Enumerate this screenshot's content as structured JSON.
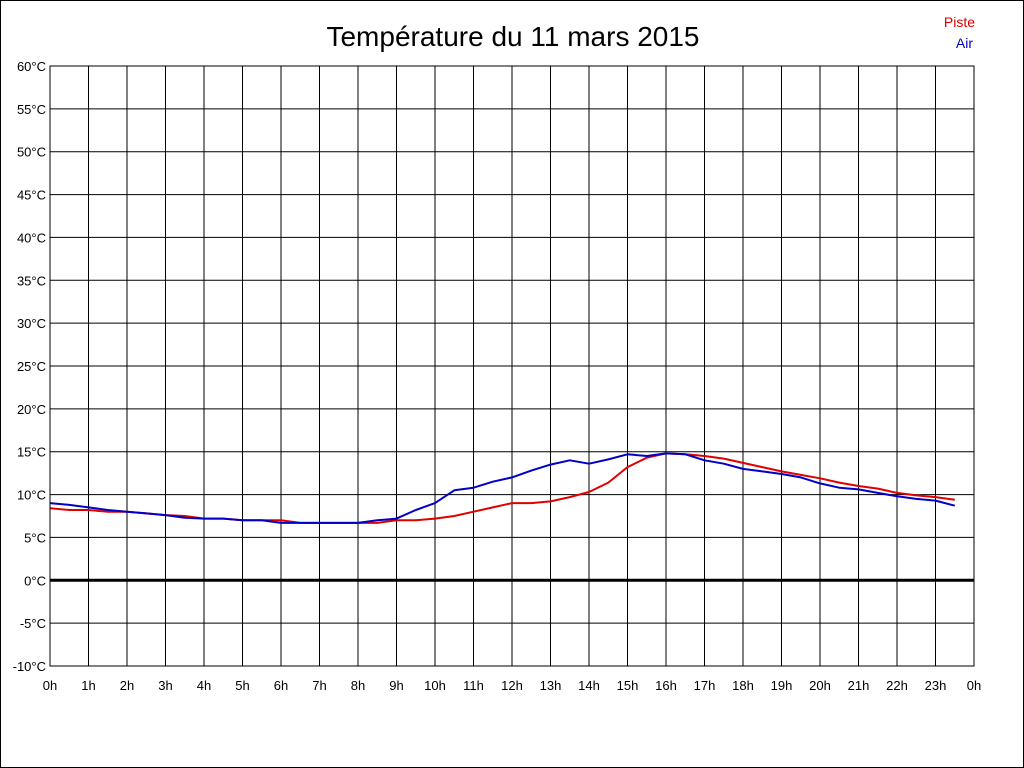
{
  "chart_data": {
    "type": "line",
    "title": "Température du 11 mars 2015",
    "xlabel": "",
    "ylabel": "",
    "ylim": [
      -10,
      60
    ],
    "xlim": [
      0,
      24
    ],
    "y_ticks": [
      -10,
      -5,
      0,
      5,
      10,
      15,
      20,
      25,
      30,
      35,
      40,
      45,
      50,
      55,
      60
    ],
    "y_tick_labels": [
      "-10°C",
      "-5°C",
      "0°C",
      "5°C",
      "10°C",
      "15°C",
      "20°C",
      "25°C",
      "30°C",
      "35°C",
      "40°C",
      "45°C",
      "50°C",
      "55°C",
      "60°C"
    ],
    "x_ticks": [
      0,
      1,
      2,
      3,
      4,
      5,
      6,
      7,
      8,
      9,
      10,
      11,
      12,
      13,
      14,
      15,
      16,
      17,
      18,
      19,
      20,
      21,
      22,
      23,
      24
    ],
    "x_tick_labels": [
      "0h",
      "1h",
      "2h",
      "3h",
      "4h",
      "5h",
      "6h",
      "7h",
      "8h",
      "9h",
      "10h",
      "11h",
      "12h",
      "13h",
      "14h",
      "15h",
      "16h",
      "17h",
      "18h",
      "19h",
      "20h",
      "21h",
      "22h",
      "23h",
      "0h"
    ],
    "grid": true,
    "zero_line": true,
    "legend_position": "top-right",
    "series": [
      {
        "name": "Piste",
        "color": "#e00000",
        "x": [
          0,
          0.5,
          1,
          1.5,
          2,
          2.5,
          3,
          3.5,
          4,
          4.5,
          5,
          5.5,
          6,
          6.5,
          7,
          7.5,
          8,
          8.5,
          9,
          9.5,
          10,
          10.5,
          11,
          11.5,
          12,
          12.5,
          13,
          13.5,
          14,
          14.5,
          15,
          15.5,
          16,
          16.5,
          17,
          17.5,
          18,
          18.5,
          19,
          19.5,
          20,
          20.5,
          21,
          21.5,
          22,
          22.5,
          23,
          23.5
        ],
        "values": [
          8.4,
          8.2,
          8.2,
          8.0,
          8.0,
          7.8,
          7.6,
          7.5,
          7.2,
          7.2,
          7.0,
          7.0,
          7.0,
          6.7,
          6.7,
          6.7,
          6.7,
          6.7,
          7.0,
          7.0,
          7.2,
          7.5,
          8.0,
          8.5,
          9.0,
          9.0,
          9.2,
          9.7,
          10.3,
          11.4,
          13.2,
          14.3,
          14.8,
          14.7,
          14.5,
          14.2,
          13.7,
          13.2,
          12.7,
          12.3,
          11.9,
          11.4,
          11.0,
          10.7,
          10.2,
          9.9,
          9.7,
          9.4
        ]
      },
      {
        "name": "Air",
        "color": "#0000c8",
        "x": [
          0,
          0.5,
          1,
          1.5,
          2,
          2.5,
          3,
          3.5,
          4,
          4.5,
          5,
          5.5,
          6,
          6.5,
          7,
          7.5,
          8,
          8.5,
          9,
          9.5,
          10,
          10.5,
          11,
          11.5,
          12,
          12.5,
          13,
          13.5,
          14,
          14.5,
          15,
          15.5,
          16,
          16.5,
          17,
          17.5,
          18,
          18.5,
          19,
          19.5,
          20,
          20.5,
          21,
          21.5,
          22,
          22.5,
          23,
          23.5
        ],
        "values": [
          9.0,
          8.8,
          8.5,
          8.2,
          8.0,
          7.8,
          7.6,
          7.3,
          7.2,
          7.2,
          7.0,
          7.0,
          6.7,
          6.7,
          6.7,
          6.7,
          6.7,
          7.0,
          7.2,
          8.2,
          9.0,
          10.5,
          10.8,
          11.5,
          12.0,
          12.8,
          13.5,
          14.0,
          13.6,
          14.1,
          14.7,
          14.5,
          14.8,
          14.7,
          14.0,
          13.6,
          13.0,
          12.7,
          12.4,
          12.0,
          11.3,
          10.8,
          10.6,
          10.2,
          9.8,
          9.5,
          9.3,
          8.7
        ]
      }
    ]
  }
}
